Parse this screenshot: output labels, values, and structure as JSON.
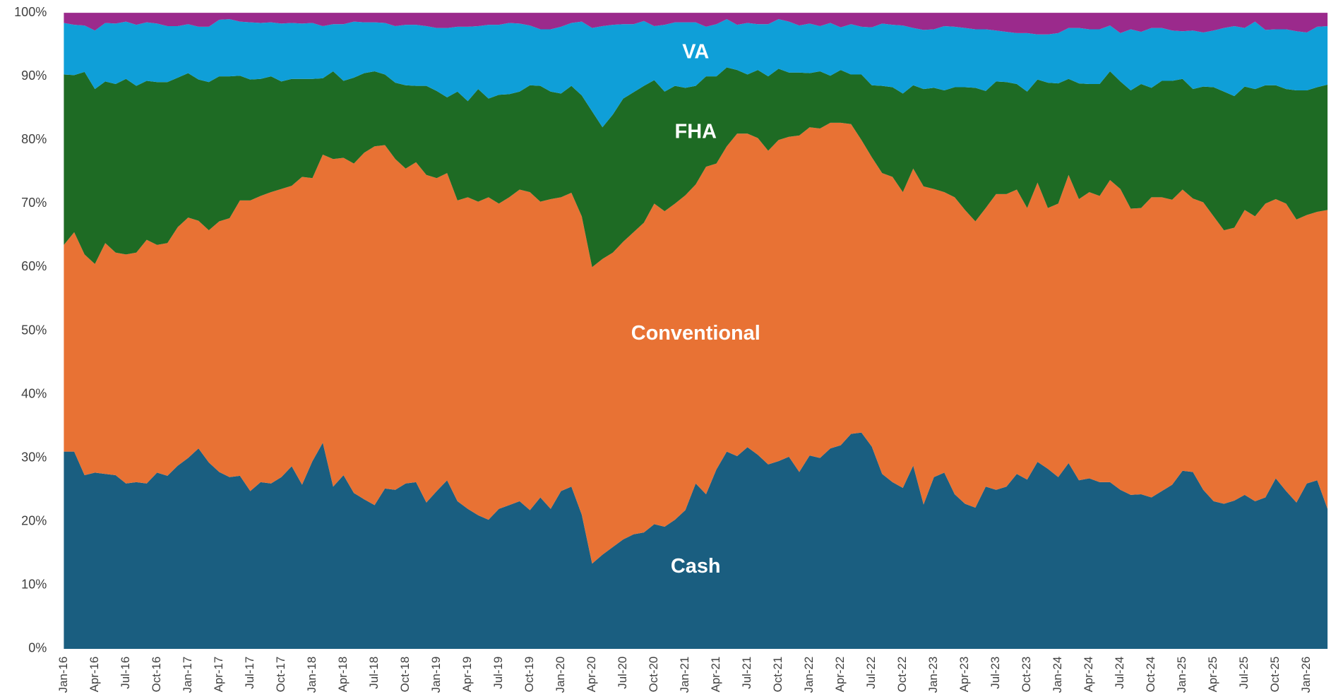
{
  "chart_data": {
    "type": "stacked_area",
    "categories": [
      "Jan-16",
      null,
      null,
      "Apr-16",
      null,
      null,
      "Jul-16",
      null,
      null,
      "Oct-16",
      null,
      null,
      "Jan-17",
      null,
      null,
      "Apr-17",
      null,
      null,
      "Jul-17",
      null,
      null,
      "Oct-17",
      null,
      null,
      "Jan-18",
      null,
      null,
      "Apr-18",
      null,
      null,
      "Jul-18",
      null,
      null,
      "Oct-18",
      null,
      null,
      "Jan-19",
      null,
      null,
      "Apr-19",
      null,
      null,
      "Jul-19",
      null,
      null,
      "Oct-19",
      null,
      null,
      "Jan-20",
      null,
      null,
      "Apr-20",
      null,
      null,
      "Jul-20",
      null,
      null,
      "Oct-20",
      null,
      null,
      "Jan-21",
      null,
      null,
      "Apr-21",
      null,
      null,
      "Jul-21",
      null,
      null,
      "Oct-21",
      null,
      null,
      "Jan-22",
      null,
      null,
      "Apr-22",
      null,
      null,
      "Jul-22",
      null,
      null,
      "Oct-22",
      null,
      null,
      "Jan-23",
      null,
      null,
      "Apr-23",
      null,
      null,
      "Jul-23",
      null,
      null,
      "Oct-23",
      null,
      null,
      "Jan-24",
      null,
      null,
      "Apr-24",
      null,
      null,
      "Jul-24",
      null,
      null,
      "Oct-24",
      null,
      null,
      "Jan-25",
      null,
      null,
      "Apr-25",
      null,
      null,
      "Jul-25",
      null,
      null,
      "Oct-25",
      null,
      null,
      "Jan-26",
      null,
      null
    ],
    "series": [
      {
        "name": "Cash",
        "color": "#1a5e80",
        "values": [
          31,
          31,
          27.3,
          27.7,
          27.5,
          27.3,
          26,
          26.2,
          26,
          27.7,
          27.2,
          28.8,
          30,
          31.5,
          29.3,
          27.8,
          27,
          27.2,
          24.8,
          26.2,
          26,
          27,
          28.7,
          25.8,
          29.5,
          32.4,
          25.5,
          27.3,
          24.5,
          23.5,
          22.6,
          25.2,
          25,
          26,
          26.2,
          23,
          24.8,
          26.5,
          23.2,
          22,
          21,
          20.3,
          22,
          22.6,
          23.2,
          21.8,
          23.8,
          22,
          24.8,
          25.5,
          21.1,
          13.4,
          14.8,
          16,
          17.2,
          18,
          18.3,
          19.6,
          19.2,
          20.3,
          21.8,
          26,
          24.3,
          28.2,
          31,
          30.3,
          31.7,
          30.5,
          29,
          29.5,
          30.2,
          27.8,
          30.4,
          30,
          31.5,
          32,
          33.8,
          34,
          31.8,
          27.5,
          26.2,
          25.3,
          28.8,
          22.7,
          27,
          27.7,
          24.3,
          22.8,
          22.2,
          25.5,
          25,
          25.5,
          27.5,
          26.6,
          29.4,
          28.3,
          27,
          29.2,
          26.5,
          26.8,
          26.2,
          26.2,
          25,
          24.2,
          24.3,
          23.8,
          24.8,
          25.8,
          28,
          27.8,
          25,
          23.2,
          22.8,
          23.3,
          24.2,
          23.2,
          23.8,
          26.8,
          24.8,
          23,
          26,
          26.5,
          22
        ]
      },
      {
        "name": "Conventional",
        "color": "#e87234",
        "values": [
          32.5,
          34.5,
          34.7,
          32.8,
          36.3,
          35,
          36,
          36.1,
          38.3,
          35.8,
          36.6,
          37.5,
          37.8,
          35.8,
          36.5,
          39.4,
          40.7,
          43.3,
          45.7,
          45,
          45.8,
          45.3,
          44.1,
          48.4,
          44.5,
          45.3,
          51.5,
          49.9,
          51.8,
          54.5,
          56.4,
          54,
          52,
          49.5,
          50.3,
          51.5,
          49.2,
          48.3,
          47.3,
          49,
          49.3,
          50.7,
          48,
          48.4,
          49,
          50,
          46.5,
          48.7,
          46.2,
          46.2,
          46.9,
          46.6,
          46.5,
          46.3,
          46.8,
          47.5,
          48.7,
          50.4,
          49.6,
          49.7,
          49.5,
          47,
          51.5,
          48.1,
          48,
          50.7,
          49.3,
          49.8,
          49.3,
          50.5,
          50.3,
          52.9,
          51.6,
          51.8,
          51.2,
          50.7,
          48.7,
          46,
          45.5,
          47.3,
          48,
          46.5,
          46.7,
          50,
          45.3,
          44.1,
          46.7,
          46.2,
          45,
          43.8,
          46.5,
          46,
          44.7,
          42.7,
          43.9,
          41,
          43,
          45.3,
          44.2,
          45,
          45,
          47.5,
          47.3,
          45,
          45,
          47.2,
          46.2,
          44.8,
          44.2,
          43,
          45.2,
          44.8,
          43,
          42.9,
          44.8,
          44.8,
          46.2,
          43.9,
          45.2,
          44.5,
          42.2,
          42.2,
          47
        ]
      },
      {
        "name": "FHA",
        "color": "#1e6b24",
        "values": [
          26.8,
          24.7,
          28.7,
          27.5,
          25.4,
          26.5,
          27.6,
          26.2,
          25,
          25.6,
          25.3,
          23.5,
          22.7,
          22.2,
          23.3,
          22.8,
          22.3,
          19.6,
          19,
          18.4,
          18.2,
          16.9,
          16.8,
          15.4,
          15.6,
          12,
          13.8,
          12.1,
          13.5,
          12.5,
          11.8,
          11.1,
          12,
          13.1,
          12,
          14,
          13.7,
          11.9,
          17.1,
          15.1,
          17.7,
          15.5,
          17.1,
          16.2,
          15.4,
          16.8,
          18.2,
          16.9,
          16.3,
          16.8,
          19,
          24.5,
          20.7,
          21.7,
          22.5,
          22,
          21.5,
          19.4,
          18.8,
          18.5,
          16.9,
          15.5,
          14.2,
          13.7,
          12.4,
          10,
          9.3,
          10.7,
          11.7,
          11.2,
          10.1,
          9.9,
          8.5,
          9,
          7.4,
          8.3,
          7.8,
          10.3,
          11.3,
          13.7,
          14.1,
          15.5,
          13.1,
          15.3,
          15.9,
          16,
          17.3,
          19.3,
          21,
          18.4,
          17.7,
          17.6,
          16.6,
          18.3,
          16.2,
          19.7,
          18.9,
          15.1,
          18.2,
          17,
          17.6,
          17.1,
          16.9,
          18.6,
          19.5,
          17.2,
          18.3,
          18.7,
          17.4,
          17.2,
          18.2,
          20.3,
          21.8,
          20.7,
          19.4,
          20,
          18.6,
          17.9,
          18,
          20.3,
          19.6,
          19.6,
          19.7
        ]
      },
      {
        "name": "VA",
        "color": "#0f9fd8",
        "values": [
          8.1,
          7.9,
          7.3,
          9.2,
          9.2,
          9.5,
          9,
          9.6,
          9.2,
          9.2,
          8.8,
          8.1,
          7.7,
          8.3,
          8.7,
          8.9,
          9,
          8.5,
          9,
          8.8,
          8.5,
          9.1,
          8.8,
          8.7,
          8.8,
          8.2,
          7.4,
          8.9,
          8.8,
          8,
          7.7,
          8.1,
          8.9,
          9.5,
          9.6,
          9.4,
          9.9,
          10.9,
          10.2,
          11.7,
          9.9,
          11.6,
          11,
          11.2,
          10.7,
          9.4,
          8.9,
          9.8,
          10.5,
          9.9,
          11.6,
          13.1,
          15.9,
          14.1,
          11.7,
          10.7,
          10.2,
          8.5,
          10.5,
          10,
          10.3,
          10,
          7.8,
          8.2,
          7.6,
          7.1,
          8.1,
          7.2,
          8.2,
          7.8,
          8,
          7.4,
          7.8,
          7.1,
          8.3,
          6.7,
          7.9,
          7.5,
          9.1,
          9.8,
          9.8,
          10.7,
          9,
          9.3,
          9.2,
          10.1,
          9.5,
          9.3,
          9.2,
          9.7,
          8,
          7.9,
          8,
          9.2,
          7.1,
          7.6,
          7.9,
          8,
          8.7,
          8.6,
          8.6,
          7.2,
          7.6,
          9.6,
          8.2,
          9.4,
          8.3,
          7.9,
          7.5,
          9.2,
          8.5,
          8.9,
          10,
          11,
          9.2,
          10.6,
          8.7,
          8.8,
          9.4,
          9.3,
          9.1,
          9.5,
          9.2
        ]
      },
      {
        "color": "#9b2a8c",
        "values": [
          1.6,
          1.9,
          2,
          2.8,
          1.6,
          1.7,
          1.4,
          1.9,
          1.5,
          1.7,
          2.1,
          2.1,
          1.8,
          2.2,
          2.2,
          1.1,
          1,
          1.4,
          1.5,
          1.6,
          1.5,
          1.7,
          1.6,
          1.7,
          1.6,
          2.1,
          1.8,
          1.8,
          1.4,
          1.5,
          1.5,
          1.6,
          2.1,
          1.9,
          1.9,
          2.1,
          2.4,
          2.4,
          2.2,
          2.2,
          2.1,
          1.9,
          1.9,
          1.6,
          1.7,
          2,
          2.6,
          2.6,
          2.2,
          1.6,
          1.4,
          2.4,
          2.1,
          1.9,
          1.8,
          1.8,
          1.3,
          2.1,
          1.9,
          1.5,
          1.5,
          1.5,
          2.2,
          1.8,
          1,
          1.9,
          1.6,
          1.8,
          1.8,
          1,
          1.4,
          2,
          1.7,
          2.1,
          1.6,
          2.3,
          1.8,
          2.2,
          2.3,
          1.7,
          1.9,
          2,
          2.4,
          2.7,
          2.6,
          2.1,
          2.2,
          2.4,
          2.6,
          2.6,
          2.8,
          3,
          3.2,
          3.2,
          3.4,
          3.4,
          3.2,
          2.4,
          2.4,
          2.6,
          2.6,
          2,
          3.2,
          2.6,
          3,
          2.4,
          2.4,
          2.8,
          2.9,
          2.8,
          3.1,
          2.8,
          2.4,
          2.1,
          2.4,
          1.4,
          2.7,
          2.6,
          2.6,
          2.9,
          3.1,
          2.2,
          2.1
        ]
      }
    ],
    "ylim": [
      0,
      100
    ],
    "yticks": [
      {
        "value": 0,
        "label": "0%"
      },
      {
        "value": 10,
        "label": "10%"
      },
      {
        "value": 20,
        "label": "20%"
      },
      {
        "value": 30,
        "label": "30%"
      },
      {
        "value": 40,
        "label": "40%"
      },
      {
        "value": 50,
        "label": "50%"
      },
      {
        "value": 60,
        "label": "60%"
      },
      {
        "value": 70,
        "label": "70%"
      },
      {
        "value": 80,
        "label": "80%"
      },
      {
        "value": 90,
        "label": "90%"
      },
      {
        "value": 100,
        "label": "100%"
      }
    ],
    "grid": false
  }
}
